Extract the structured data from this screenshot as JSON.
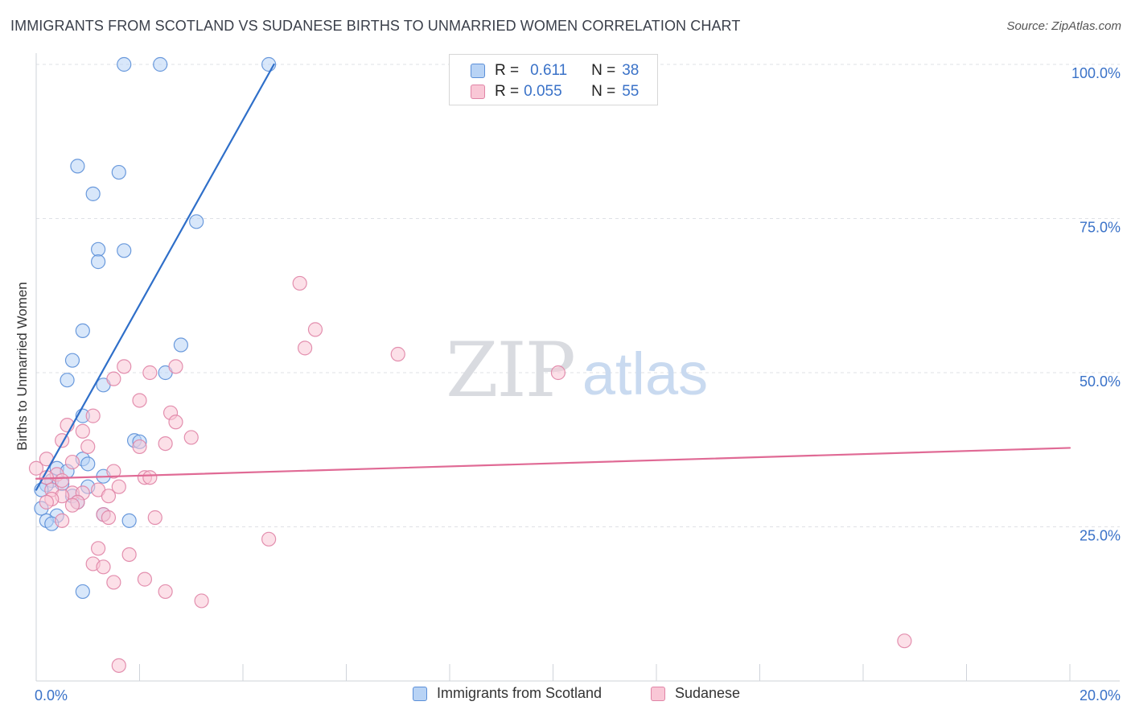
{
  "header": {
    "title": "IMMIGRANTS FROM SCOTLAND VS SUDANESE BIRTHS TO UNMARRIED WOMEN CORRELATION CHART",
    "source": "Source: ZipAtlas.com"
  },
  "watermark": {
    "zip": "ZIP",
    "atlas": "atlas"
  },
  "legend": {
    "r_label": "R =",
    "n_label": "N =",
    "rows": [
      {
        "r": "0.611",
        "n": "38"
      },
      {
        "r": "0.055",
        "n": "55"
      }
    ]
  },
  "colors": {
    "scotland_fill": "#b8d3f5",
    "scotland_stroke": "#5b8fd8",
    "scotland_line": "#2f6fc9",
    "sudanese_fill": "#f9c7d6",
    "sudanese_stroke": "#e084a6",
    "sudanese_line": "#e06a95",
    "axis_label": "#3a72c8"
  },
  "chart_data": {
    "type": "scatter",
    "title": "IMMIGRANTS FROM SCOTLAND VS SUDANESE BIRTHS TO UNMARRIED WOMEN CORRELATION CHART",
    "xlabel": "",
    "ylabel": "Births to Unmarried Women",
    "xlim": [
      0,
      20
    ],
    "ylim": [
      0,
      100
    ],
    "x_tick_labels": [
      "0.0%",
      "20.0%"
    ],
    "y_tick_labels": [
      "25.0%",
      "50.0%",
      "75.0%",
      "100.0%"
    ],
    "y_tick_values": [
      25,
      50,
      75,
      100
    ],
    "x_minor_ticks": [
      0,
      2,
      4,
      6,
      8,
      10,
      12,
      14,
      16,
      18,
      20
    ],
    "grid": true,
    "series": [
      {
        "name": "Immigrants from Scotland",
        "r": 0.611,
        "n": 38,
        "trend": {
          "x": [
            0.0,
            4.6
          ],
          "y": [
            31.0,
            100.0
          ]
        },
        "points": [
          [
            1.7,
            100.0
          ],
          [
            2.4,
            100.0
          ],
          [
            4.5,
            100.0
          ],
          [
            0.8,
            83.5
          ],
          [
            1.6,
            82.5
          ],
          [
            1.1,
            79.0
          ],
          [
            3.1,
            74.5
          ],
          [
            1.2,
            70.0
          ],
          [
            1.7,
            69.8
          ],
          [
            1.2,
            68.0
          ],
          [
            0.9,
            56.8
          ],
          [
            2.8,
            54.5
          ],
          [
            0.7,
            52.0
          ],
          [
            2.5,
            50.0
          ],
          [
            0.6,
            48.8
          ],
          [
            1.3,
            48.0
          ],
          [
            0.9,
            43.0
          ],
          [
            1.9,
            39.0
          ],
          [
            2.0,
            38.8
          ],
          [
            0.9,
            36.0
          ],
          [
            1.0,
            35.2
          ],
          [
            0.4,
            34.5
          ],
          [
            0.6,
            34.0
          ],
          [
            1.3,
            33.2
          ],
          [
            0.3,
            32.5
          ],
          [
            0.5,
            32.0
          ],
          [
            0.2,
            31.8
          ],
          [
            1.0,
            31.5
          ],
          [
            0.1,
            31.0
          ],
          [
            0.7,
            30.0
          ],
          [
            0.8,
            29.0
          ],
          [
            0.1,
            28.0
          ],
          [
            1.3,
            27.0
          ],
          [
            0.4,
            26.8
          ],
          [
            0.2,
            26.0
          ],
          [
            1.8,
            26.0
          ],
          [
            0.3,
            25.5
          ],
          [
            0.9,
            14.5
          ]
        ]
      },
      {
        "name": "Sudanese",
        "r": 0.055,
        "n": 55,
        "trend": {
          "x": [
            0.0,
            20.0
          ],
          "y": [
            32.8,
            37.8
          ]
        },
        "points": [
          [
            5.1,
            64.5
          ],
          [
            5.4,
            57.0
          ],
          [
            5.2,
            54.0
          ],
          [
            7.0,
            53.0
          ],
          [
            1.7,
            51.0
          ],
          [
            2.7,
            51.0
          ],
          [
            2.2,
            50.0
          ],
          [
            10.1,
            50.0
          ],
          [
            1.5,
            49.0
          ],
          [
            2.0,
            45.5
          ],
          [
            2.6,
            43.5
          ],
          [
            1.1,
            43.0
          ],
          [
            0.6,
            41.5
          ],
          [
            2.7,
            42.0
          ],
          [
            0.9,
            40.5
          ],
          [
            3.0,
            39.5
          ],
          [
            0.5,
            39.0
          ],
          [
            2.5,
            38.5
          ],
          [
            2.0,
            38.0
          ],
          [
            1.0,
            38.0
          ],
          [
            0.2,
            36.0
          ],
          [
            0.7,
            35.5
          ],
          [
            0.0,
            34.5
          ],
          [
            1.5,
            34.0
          ],
          [
            0.4,
            33.5
          ],
          [
            2.1,
            33.0
          ],
          [
            2.2,
            33.0
          ],
          [
            0.2,
            33.0
          ],
          [
            0.5,
            32.5
          ],
          [
            1.6,
            31.5
          ],
          [
            1.2,
            31.0
          ],
          [
            0.3,
            31.0
          ],
          [
            0.7,
            30.5
          ],
          [
            0.9,
            30.5
          ],
          [
            0.5,
            30.0
          ],
          [
            1.4,
            30.0
          ],
          [
            0.3,
            29.5
          ],
          [
            0.8,
            29.0
          ],
          [
            0.7,
            28.5
          ],
          [
            1.3,
            27.0
          ],
          [
            2.3,
            26.5
          ],
          [
            1.4,
            26.5
          ],
          [
            0.5,
            26.0
          ],
          [
            4.5,
            23.0
          ],
          [
            1.2,
            21.5
          ],
          [
            1.8,
            20.5
          ],
          [
            1.1,
            19.0
          ],
          [
            1.3,
            18.5
          ],
          [
            2.1,
            16.5
          ],
          [
            1.5,
            16.0
          ],
          [
            2.5,
            14.5
          ],
          [
            3.2,
            13.0
          ],
          [
            16.8,
            6.5
          ],
          [
            1.6,
            2.5
          ],
          [
            0.2,
            29.0
          ]
        ]
      }
    ]
  }
}
